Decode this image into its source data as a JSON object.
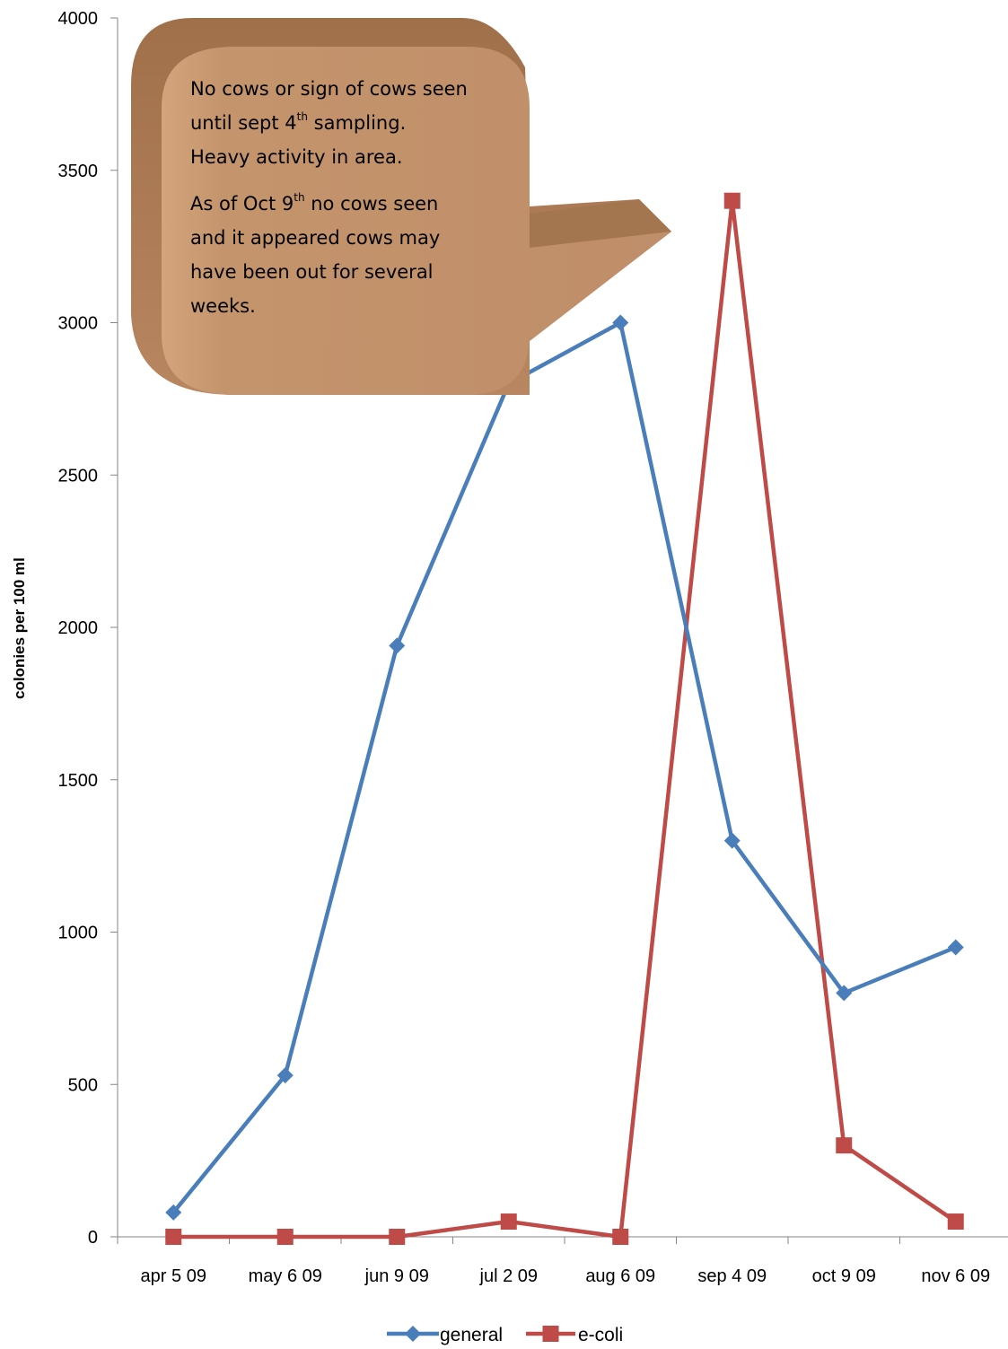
{
  "chart_data": {
    "type": "line",
    "categories": [
      "apr 5 09",
      "may 6 09",
      "jun 9 09",
      "jul 2 09",
      "aug 6 09",
      "sep 4 09",
      "oct 9 09",
      "nov 6 09"
    ],
    "series": [
      {
        "name": "general",
        "color": "#4a7ebb",
        "marker": "diamond",
        "values": [
          80,
          530,
          1940,
          2800,
          3000,
          1300,
          800,
          950
        ]
      },
      {
        "name": "e-coli",
        "color": "#be4b48",
        "marker": "square",
        "values": [
          0,
          0,
          0,
          50,
          0,
          3400,
          300,
          50
        ]
      }
    ],
    "ylabel": "colonies per 100 ml",
    "ylim": [
      0,
      4000
    ],
    "yticks": [
      0,
      500,
      1000,
      1500,
      2000,
      2500,
      3000,
      3500,
      4000
    ],
    "grid": false,
    "legend": "bottom",
    "annotation": {
      "para1": [
        "No cows or sign of cows seen",
        "until  sept 4",
        "th",
        " sampling.",
        "Heavy activity in area."
      ],
      "para2": [
        "As of Oct 9",
        "th",
        " no cows seen",
        "and it appeared cows may",
        "have been out for several",
        "weeks."
      ],
      "fill": "#c09070"
    }
  }
}
